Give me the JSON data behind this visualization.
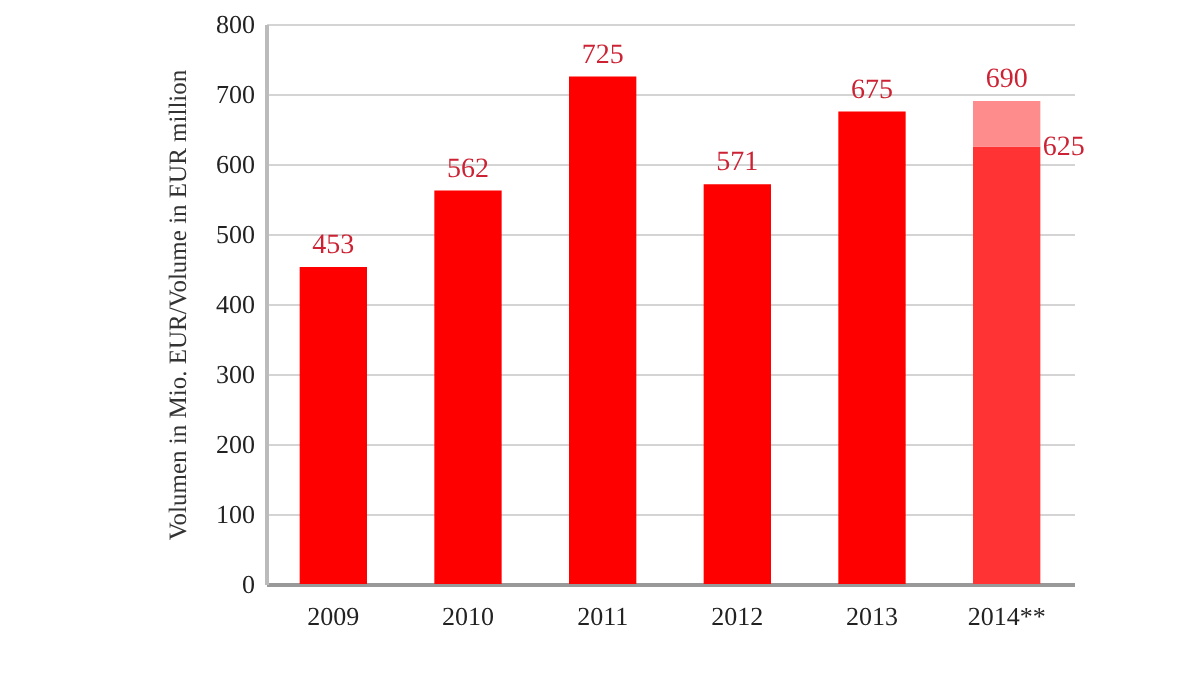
{
  "chart_data": {
    "type": "bar",
    "ylabel": "Volumen in Mio. EUR/Volume in EUR million",
    "categories": [
      "2009",
      "2010",
      "2011",
      "2012",
      "2013",
      "2014**"
    ],
    "stacked": true,
    "series": [
      {
        "colors": [
          "#ff0000",
          "#ff0000",
          "#ff0000",
          "#ff0000",
          "#ff0000",
          "#ff3333"
        ],
        "values": [
          453,
          562,
          725,
          571,
          675,
          625
        ],
        "value_labels": [
          "453",
          "562",
          "725",
          "571",
          "675",
          "625"
        ]
      },
      {
        "color": "#ff8c8c",
        "values": [
          null,
          null,
          null,
          null,
          null,
          65
        ],
        "value_labels": [
          null,
          null,
          null,
          null,
          null,
          null
        ]
      }
    ],
    "totals": [
      null,
      null,
      null,
      null,
      null,
      "690"
    ],
    "ylim": [
      0,
      800
    ],
    "yticks": [
      0,
      100,
      200,
      300,
      400,
      500,
      600,
      700,
      800
    ],
    "grid": "y"
  }
}
